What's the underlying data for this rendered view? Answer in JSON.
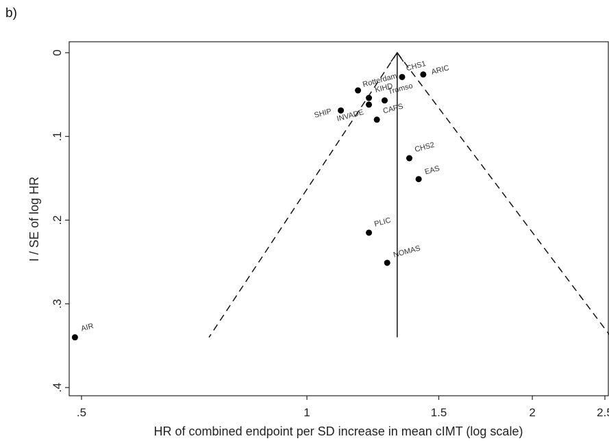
{
  "panel_label": "b)",
  "chart_data": {
    "type": "scatter",
    "subtype": "funnel-plot",
    "xlabel": "HR of combined endpoint per SD increase in mean cIMT (log scale)",
    "ylabel": "I / SE of log HR",
    "x_scale": "log",
    "y_reversed": true,
    "xlim": [
      0.48,
      2.58
    ],
    "ylim": [
      0,
      0.4
    ],
    "x_ticks": [
      {
        "value": 0.5,
        "label": ".5"
      },
      {
        "value": 1,
        "label": "1"
      },
      {
        "value": 1.5,
        "label": "1.5"
      },
      {
        "value": 2,
        "label": "2"
      },
      {
        "value": 2.5,
        "label": "2.5"
      }
    ],
    "y_ticks": [
      {
        "value": 0,
        "label": "0"
      },
      {
        "value": 0.1,
        "label": ".1"
      },
      {
        "value": 0.2,
        "label": ".2"
      },
      {
        "value": 0.3,
        "label": ".3"
      },
      {
        "value": 0.4,
        "label": ".4"
      }
    ],
    "pooled_estimate": 1.32,
    "funnel": {
      "apex_y": 0,
      "base_y": 0.34,
      "lower_x": 0.74,
      "upper_x": 2.55
    },
    "points": [
      {
        "label": "CHS1",
        "x": 1.34,
        "y": 0.029
      },
      {
        "label": "ARIC",
        "x": 1.43,
        "y": 0.026
      },
      {
        "label": "Rotterdam",
        "x": 1.17,
        "y": 0.045
      },
      {
        "label": "KIHD",
        "x": 1.21,
        "y": 0.054
      },
      {
        "label": "Tromso",
        "x": 1.27,
        "y": 0.057
      },
      {
        "label": "SHIP",
        "x": 1.11,
        "y": 0.069
      },
      {
        "label": "INVADE",
        "x": 1.21,
        "y": 0.062
      },
      {
        "label": "CAPS",
        "x": 1.24,
        "y": 0.08
      },
      {
        "label": "CHS2",
        "x": 1.37,
        "y": 0.126
      },
      {
        "label": "EAS",
        "x": 1.41,
        "y": 0.151
      },
      {
        "label": "PLIC",
        "x": 1.21,
        "y": 0.215
      },
      {
        "label": "NOMAS",
        "x": 1.28,
        "y": 0.251
      },
      {
        "label": "AIR",
        "x": 0.49,
        "y": 0.34
      }
    ],
    "grid": false,
    "legend": "none"
  }
}
